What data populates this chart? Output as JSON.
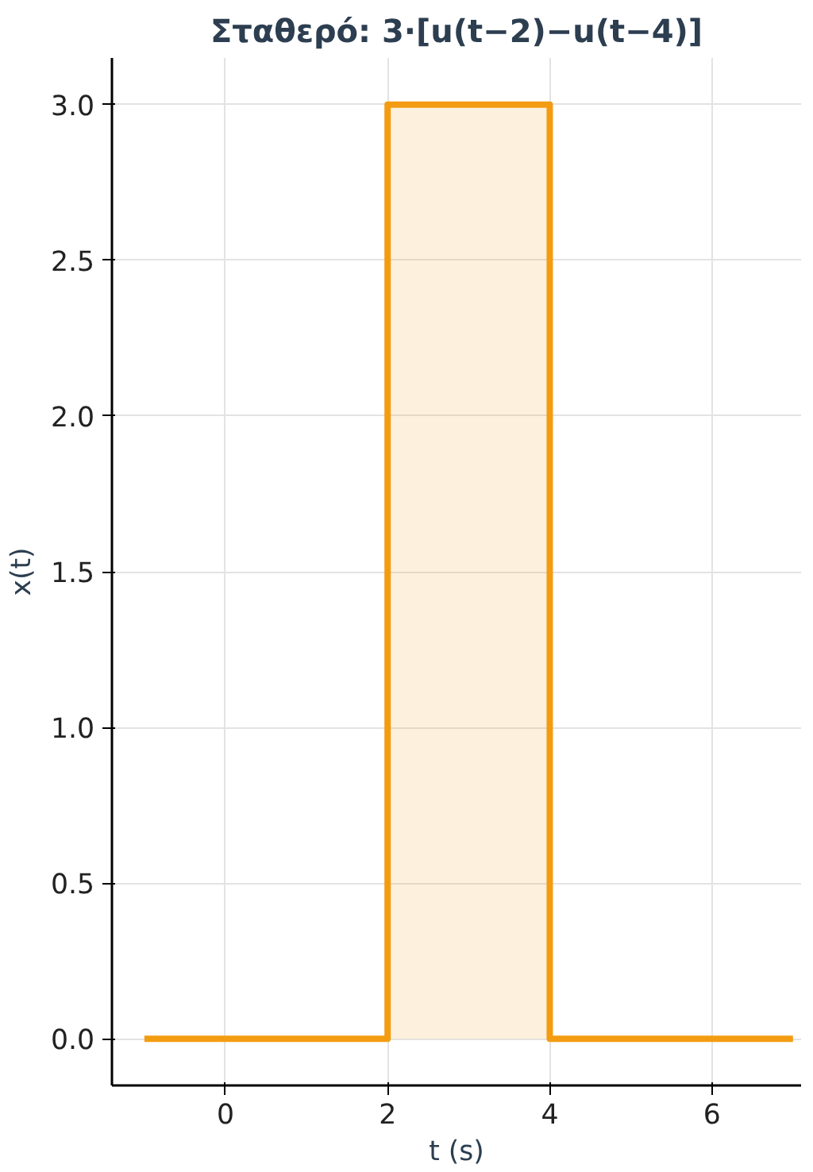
{
  "chart_data": {
    "type": "area",
    "title": "Σταθερό: 3·[u(t−2)−u(t−4)]",
    "xlabel": "t (s)",
    "ylabel": "x(t)",
    "x": [
      -1,
      2,
      2,
      4,
      4,
      7
    ],
    "series": [
      {
        "color": "#f39c12",
        "values": [
          0,
          0,
          3,
          3,
          0,
          0
        ]
      }
    ],
    "xlim": [
      -1.4,
      7.1
    ],
    "ylim": [
      -0.15,
      3.15
    ],
    "xticks": [
      0,
      2,
      4,
      6
    ],
    "yticks": [
      {
        "value": 0,
        "label": "0.0"
      },
      {
        "value": 0.5,
        "label": "0.5"
      },
      {
        "value": 1,
        "label": "1.0"
      },
      {
        "value": 1.5,
        "label": "1.5"
      },
      {
        "value": 2,
        "label": "2.0"
      },
      {
        "value": 2.5,
        "label": "2.5"
      },
      {
        "value": 3,
        "label": "3.0"
      }
    ],
    "grid": true
  }
}
